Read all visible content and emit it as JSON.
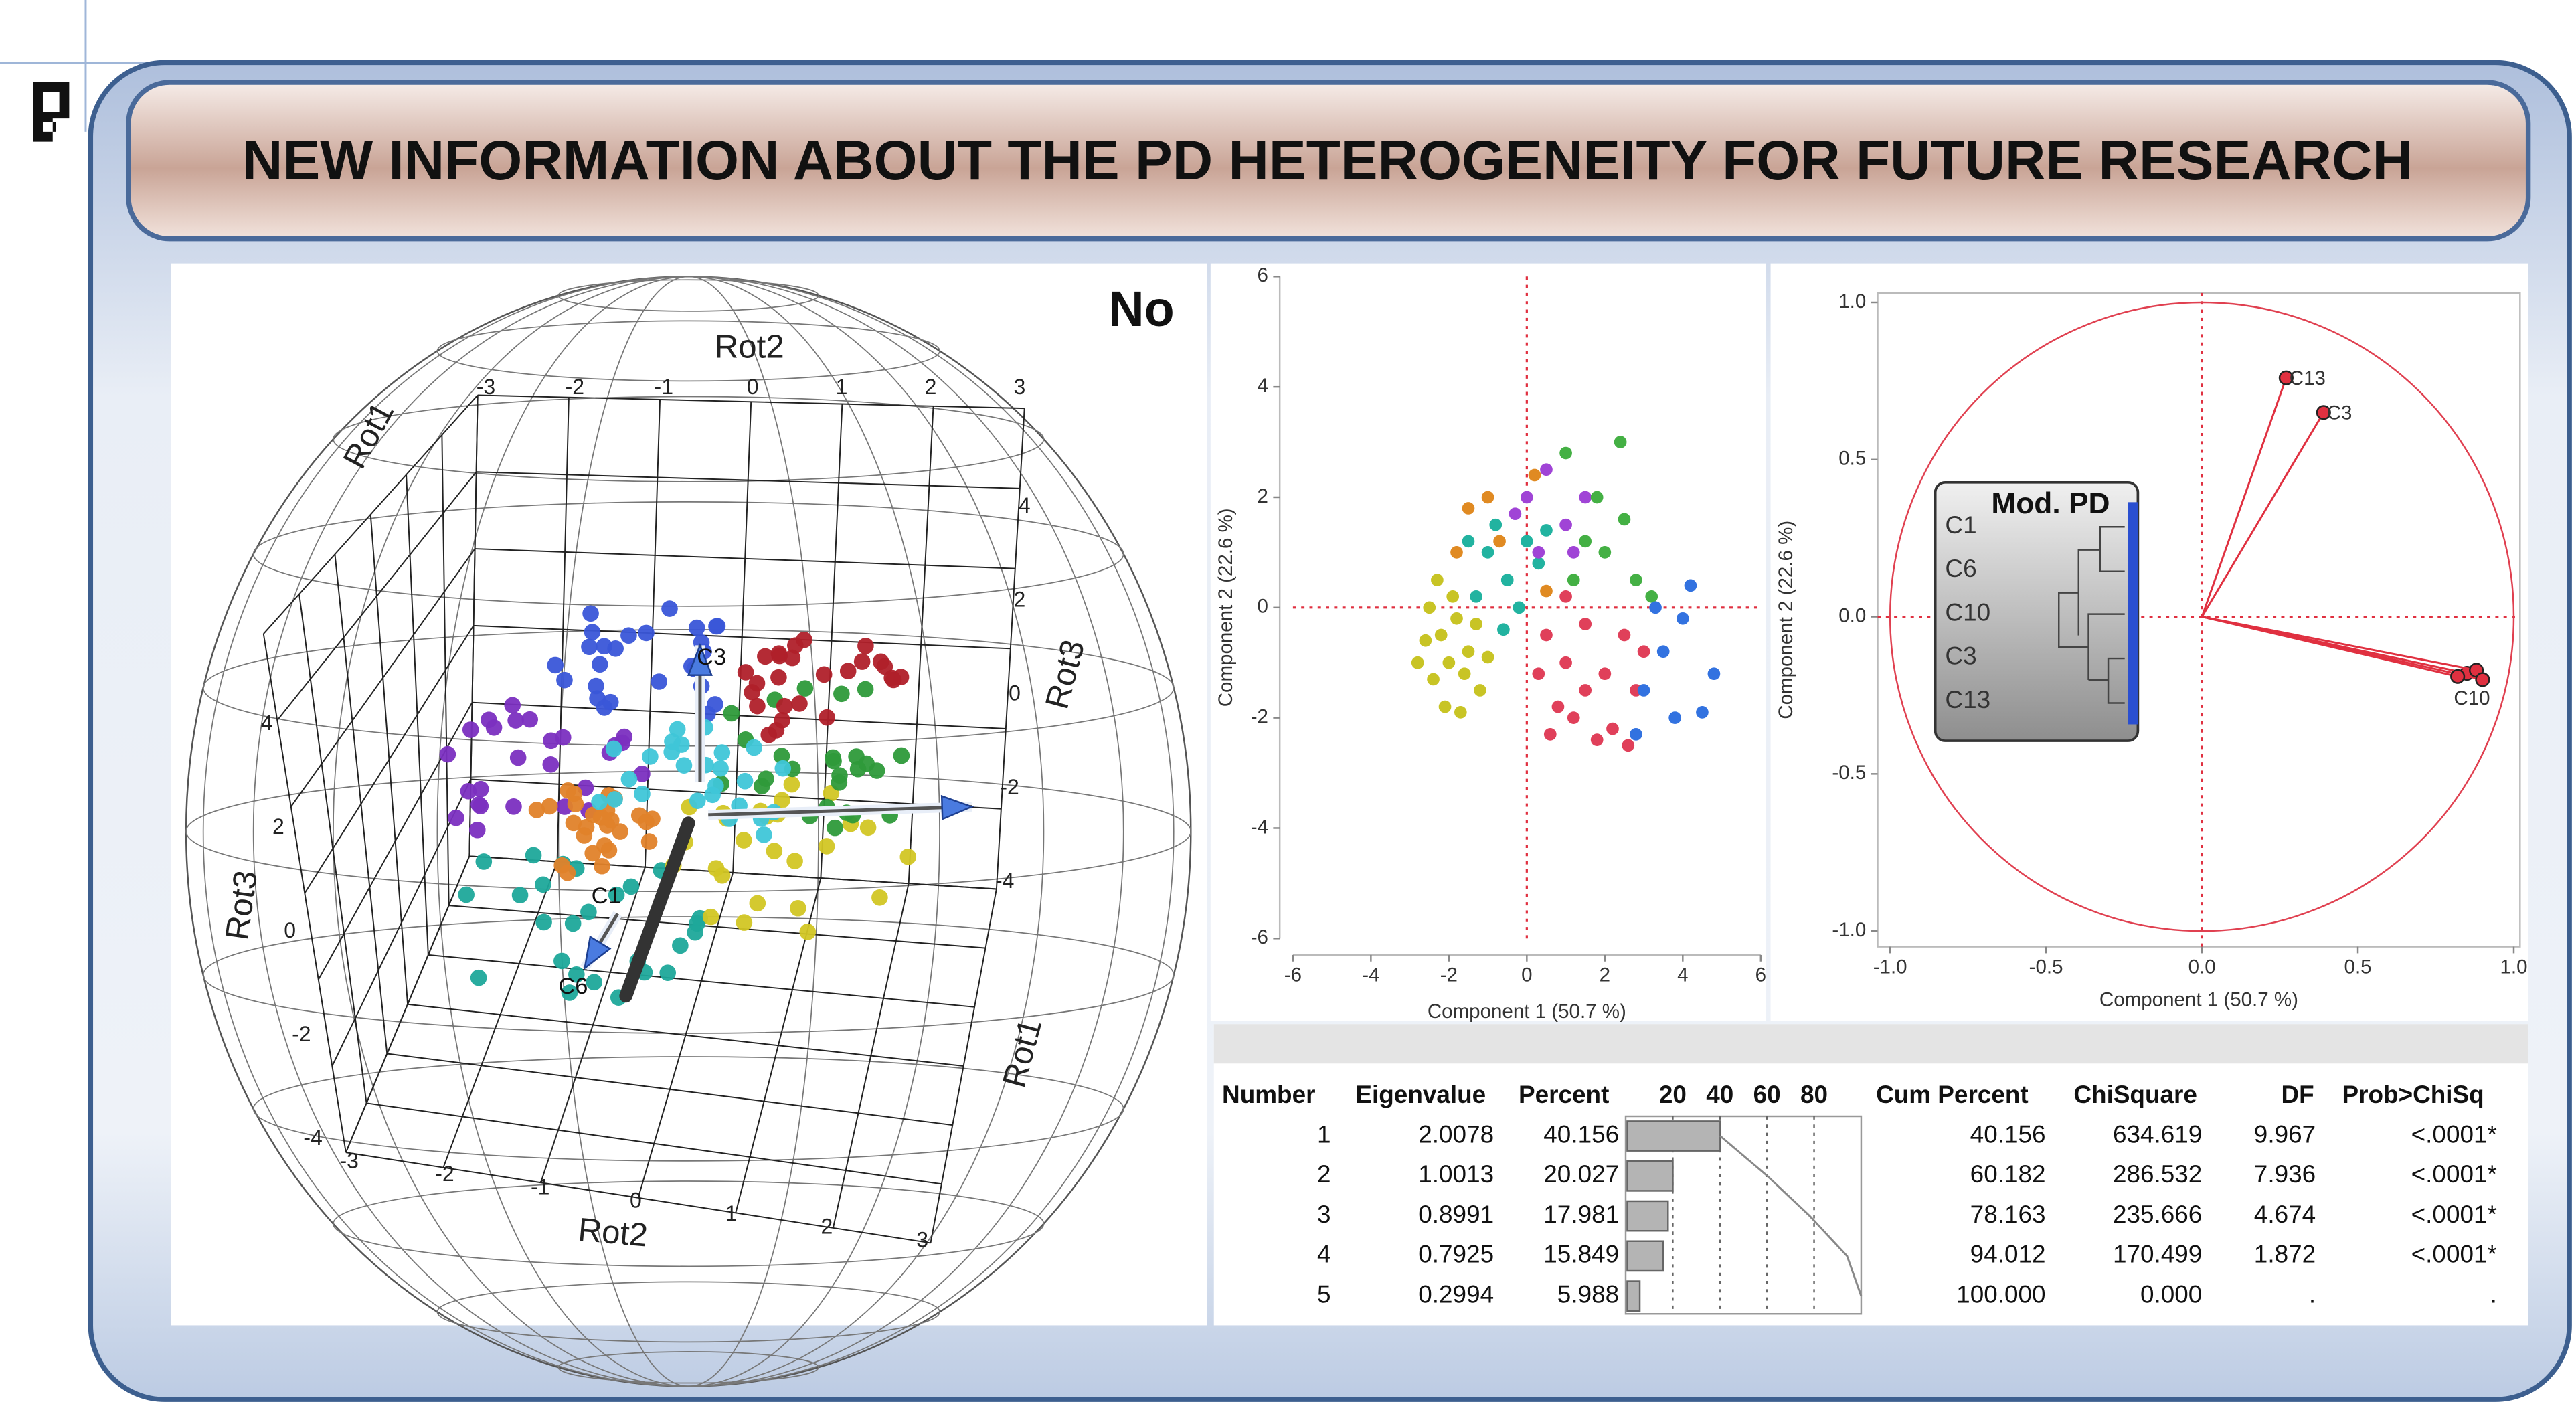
{
  "header": {
    "title": "NEW INFORMATION ABOUT THE PD HETEROGENEITY FOR FUTURE RESEARCH"
  },
  "rotation_plot": {
    "label": "No",
    "axis_labels": [
      "Rot2",
      "Rot1",
      "Rot3",
      "Rot3",
      "Rot1",
      "Rot2"
    ],
    "vector_labels": [
      "C3",
      "C1",
      "C6"
    ],
    "tick_labels": {
      "top": [
        -3,
        -2,
        -1,
        0,
        1,
        2,
        3
      ],
      "bottom": [
        -3,
        -2,
        -1,
        0,
        1,
        2,
        3
      ],
      "left": [
        4,
        2,
        0,
        -2,
        -4
      ],
      "right": [
        4,
        2,
        0,
        -2,
        -4
      ]
    }
  },
  "chart_data": [
    {
      "type": "scatter",
      "xlabel": "Component 1  (50.7 %)",
      "ylabel": "Component 2  (22.6 %)",
      "xlim": [
        -6,
        6
      ],
      "ylim": [
        -6,
        6
      ],
      "xticks": [
        -6,
        -4,
        -2,
        0,
        2,
        4,
        6
      ],
      "yticks": [
        -6,
        -4,
        -2,
        0,
        2,
        4,
        6
      ],
      "ref_lines": {
        "x": 0,
        "y": 0
      },
      "series": [
        {
          "color": "#c8c425",
          "x": [
            -2.2,
            -2.0,
            -1.8,
            -2.4,
            -1.5,
            -2.6,
            -1.9,
            -1.2,
            -2.1,
            -1.6,
            -2.8,
            -1.3,
            -2.3,
            -1.0,
            -1.7,
            -2.5
          ],
          "values": [
            -0.5,
            -1.0,
            -0.2,
            -1.3,
            -0.8,
            -0.6,
            0.2,
            -1.5,
            -1.8,
            -1.2,
            -1.0,
            -0.3,
            0.5,
            -0.9,
            -1.9,
            0.0
          ]
        },
        {
          "color": "#e0405a",
          "x": [
            0.5,
            1.0,
            1.5,
            0.8,
            2.0,
            1.2,
            2.5,
            0.3,
            1.8,
            2.8,
            1.0,
            2.2,
            0.6,
            3.0,
            1.5,
            2.6
          ],
          "values": [
            -0.5,
            -1.0,
            -0.3,
            -1.8,
            -1.2,
            -2.0,
            -0.5,
            -1.2,
            -2.4,
            -1.5,
            0.2,
            -2.2,
            -2.3,
            -0.8,
            -1.5,
            -2.5
          ]
        },
        {
          "color": "#22b3a0",
          "x": [
            -1.0,
            -0.5,
            -1.3,
            0.0,
            -0.8,
            -0.2,
            -1.5,
            0.3,
            -0.6,
            0.5
          ],
          "values": [
            1.0,
            0.5,
            0.2,
            1.2,
            1.5,
            0.0,
            1.2,
            0.8,
            -0.4,
            1.4
          ]
        },
        {
          "color": "#e08a22",
          "x": [
            -1.5,
            -1.0,
            -0.7,
            0.2,
            -1.8,
            0.5
          ],
          "values": [
            1.8,
            2.0,
            1.2,
            2.4,
            1.0,
            0.3
          ]
        },
        {
          "color": "#a044d6",
          "x": [
            0.0,
            0.5,
            1.0,
            0.3,
            1.5,
            -0.3,
            1.2
          ],
          "values": [
            2.0,
            2.5,
            1.5,
            1.0,
            2.0,
            1.7,
            1.0
          ]
        },
        {
          "color": "#44b044",
          "x": [
            1.5,
            2.0,
            2.8,
            1.8,
            2.5,
            1.0,
            2.4,
            3.2,
            1.2
          ],
          "values": [
            1.2,
            1.0,
            0.5,
            2.0,
            1.6,
            2.8,
            3.0,
            0.2,
            0.5
          ]
        },
        {
          "color": "#3272e0",
          "x": [
            3.5,
            4.0,
            3.0,
            4.8,
            3.8,
            2.8,
            4.2,
            3.3,
            4.5
          ],
          "values": [
            -0.8,
            -0.2,
            -1.5,
            -1.2,
            -2.0,
            -2.3,
            0.4,
            0.0,
            -1.9
          ]
        }
      ]
    },
    {
      "type": "loading",
      "xlabel": "Component 1  (50.7 %)",
      "ylabel": "Component 2  (22.6 %)",
      "xlim": [
        -1.04,
        1.02
      ],
      "ylim": [
        -1.05,
        1.03
      ],
      "xticks": [
        {
          "value": -1,
          "label": "-1.0"
        },
        -0.5,
        {
          "value": 0,
          "label": "0.0"
        },
        0.5,
        {
          "value": 1,
          "label": "1.0"
        }
      ],
      "yticks": [
        {
          "value": 1,
          "label": "1.0"
        },
        0.5,
        {
          "value": 0,
          "label": "0.0"
        },
        -0.5,
        {
          "value": -1,
          "label": "-1.0"
        }
      ],
      "ref_lines": {
        "x": 0,
        "y": 0
      },
      "circle": 1,
      "color": "#e03040",
      "labels": [
        "C13",
        "C3",
        "C10",
        null,
        null,
        null
      ],
      "x": [
        0.27,
        0.39,
        0.85,
        0.88,
        0.9,
        0.82
      ],
      "values": [
        0.76,
        0.65,
        -0.18,
        -0.17,
        -0.2,
        -0.19
      ],
      "inset": {
        "title": "Mod. PD",
        "labels": [
          "C1",
          "C6",
          "C10",
          "C3",
          "C13"
        ]
      }
    }
  ],
  "table": {
    "columns": [
      "Number",
      "Eigenvalue",
      "Percent",
      "Cum Percent",
      "ChiSquare",
      "DF",
      "Prob>ChiSq"
    ],
    "bar_ticks": [
      20,
      40,
      60,
      80
    ],
    "bar_xlim": [
      0,
      100
    ],
    "rows": [
      [
        "1",
        "2.0078",
        "40.156",
        "40.156",
        "634.619",
        "9.967",
        "<.0001*"
      ],
      [
        "2",
        "1.0013",
        "20.027",
        "60.182",
        "286.532",
        "7.936",
        "<.0001*"
      ],
      [
        "3",
        "0.8991",
        "17.981",
        "78.163",
        "235.666",
        "4.674",
        "<.0001*"
      ],
      [
        "4",
        "0.7925",
        "15.849",
        "94.012",
        "170.499",
        "1.872",
        "<.0001*"
      ],
      [
        "5",
        "0.2994",
        "5.988",
        "100.000",
        "0.000",
        ".",
        "."
      ]
    ]
  }
}
